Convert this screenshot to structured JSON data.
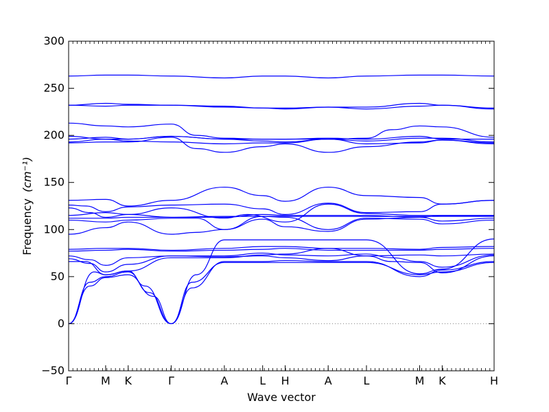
{
  "chart_data": {
    "type": "line",
    "xlabel": "Wave vector",
    "ylabel": "Frequency",
    "ylabel_unit": "(cm⁻¹)",
    "ylim": [
      -50,
      300
    ],
    "yticks": [
      -50,
      0,
      50,
      100,
      150,
      200,
      250,
      300
    ],
    "grid": false,
    "zero_line": true,
    "colors": {
      "band": "#0000ff",
      "zero_line": "#7f7f7f",
      "axes": "#000000"
    },
    "high_symmetry_points": [
      {
        "label": "Γ",
        "x": 0.0
      },
      {
        "label": "M",
        "x": 0.087
      },
      {
        "label": "K",
        "x": 0.14
      },
      {
        "label": "Γ",
        "x": 0.241
      },
      {
        "label": "A",
        "x": 0.366
      },
      {
        "label": "L",
        "x": 0.456
      },
      {
        "label": "H",
        "x": 0.509
      },
      {
        "label": "A",
        "x": 0.61
      },
      {
        "label": "L",
        "x": 0.7
      },
      {
        "label": "M",
        "x": 0.825
      },
      {
        "label": "K",
        "x": 0.878
      },
      {
        "label": "H",
        "x": 1.0
      }
    ],
    "bands": [
      {
        "x": [
          0,
          0.06,
          0.087,
          0.14,
          0.18,
          0.241
        ],
        "y": [
          0,
          55,
          52,
          56,
          40,
          0
        ]
      },
      {
        "x": [
          0,
          0.05,
          0.087,
          0.14,
          0.19,
          0.241
        ],
        "y": [
          0,
          44,
          50,
          55,
          33,
          0
        ]
      },
      {
        "x": [
          0,
          0.05,
          0.087,
          0.14,
          0.2,
          0.241
        ],
        "y": [
          0,
          40,
          49,
          52,
          29,
          0
        ]
      },
      {
        "x": [
          0.241,
          0.29,
          0.366,
          0.456,
          0.509,
          0.61,
          0.7,
          0.825,
          0.878,
          1.0
        ],
        "y": [
          0,
          44,
          65,
          65,
          65,
          65,
          65,
          52,
          55,
          65
        ]
      },
      {
        "x": [
          0.241,
          0.29,
          0.366,
          0.456,
          0.509,
          0.61,
          0.7,
          0.825,
          0.878,
          1.0
        ],
        "y": [
          0,
          38,
          66,
          66,
          67,
          66,
          66,
          50,
          57,
          66
        ]
      },
      {
        "x": [
          0.241,
          0.3,
          0.366,
          0.456,
          0.509,
          0.61,
          0.7,
          0.825,
          0.878,
          1.0
        ],
        "y": [
          0,
          52,
          89,
          89,
          89,
          89,
          89,
          53,
          58,
          90
        ]
      },
      {
        "x": [
          0,
          0.04,
          0.087,
          0.14,
          0.24,
          0.366,
          0.456,
          0.509,
          0.61,
          0.7,
          0.76,
          0.825,
          0.878,
          1.0
        ],
        "y": [
          66,
          66,
          52,
          56,
          70,
          70,
          73,
          74,
          80,
          72,
          66,
          65,
          54,
          72
        ]
      },
      {
        "x": [
          0,
          0.05,
          0.087,
          0.14,
          0.24,
          0.366,
          0.456,
          0.509,
          0.61,
          0.7,
          0.76,
          0.825,
          0.878,
          1.0
        ],
        "y": [
          69,
          64,
          55,
          63,
          72,
          72,
          75,
          73,
          72,
          74,
          70,
          66,
          60,
          73
        ]
      },
      {
        "x": [
          0,
          0.05,
          0.087,
          0.14,
          0.24,
          0.366,
          0.456,
          0.509,
          0.61,
          0.7,
          0.825,
          0.878,
          1.0
        ],
        "y": [
          72,
          68,
          62,
          70,
          72,
          71,
          72,
          70,
          67,
          72,
          73,
          72,
          74
        ]
      },
      {
        "x": [
          0,
          0.087,
          0.14,
          0.241,
          0.366,
          0.456,
          0.509,
          0.61,
          0.7,
          0.825,
          0.878,
          1.0
        ],
        "y": [
          77,
          78,
          79,
          77,
          78,
          79,
          80,
          78,
          78,
          78,
          79,
          80
        ]
      },
      {
        "x": [
          0,
          0.087,
          0.14,
          0.241,
          0.366,
          0.456,
          0.509,
          0.61,
          0.7,
          0.825,
          0.878,
          1.0
        ],
        "y": [
          79,
          80,
          80,
          78,
          80,
          82,
          82,
          80,
          80,
          79,
          81,
          82
        ]
      },
      {
        "x": [
          0,
          0.087,
          0.14,
          0.241,
          0.3,
          0.366,
          0.456,
          0.509,
          0.61,
          0.7,
          0.825,
          0.878,
          1.0
        ],
        "y": [
          95,
          102,
          108,
          95,
          97,
          100,
          114,
          113,
          100,
          112,
          111,
          106,
          110
        ]
      },
      {
        "x": [
          0,
          0.087,
          0.14,
          0.241,
          0.3,
          0.366,
          0.456,
          0.509,
          0.61,
          0.7,
          0.825,
          0.878,
          1.0
        ],
        "y": [
          110,
          108,
          110,
          112,
          112,
          100,
          111,
          103,
          98,
          111,
          113,
          109,
          112
        ]
      },
      {
        "x": [
          0,
          0.087,
          0.14,
          0.241,
          0.366,
          0.456,
          0.509,
          0.61,
          0.7,
          0.825,
          0.878,
          1.0
        ],
        "y": [
          112,
          112,
          113,
          113,
          114,
          114,
          114,
          114,
          114,
          114,
          114,
          114
        ]
      },
      {
        "x": [
          0,
          0.087,
          0.14,
          0.241,
          0.366,
          0.456,
          0.509,
          0.61,
          0.7,
          0.825,
          0.878,
          1.0
        ],
        "y": [
          115,
          118,
          116,
          113,
          113,
          116,
          115,
          115,
          115,
          113,
          115,
          115
        ]
      },
      {
        "x": [
          0,
          0.05,
          0.087,
          0.14,
          0.241,
          0.366,
          0.42,
          0.509,
          0.61,
          0.7,
          0.825,
          0.878,
          1.0
        ],
        "y": [
          123,
          118,
          113,
          116,
          123,
          112,
          116,
          108,
          127,
          117,
          115,
          115,
          115
        ]
      },
      {
        "x": [
          0,
          0.04,
          0.087,
          0.14,
          0.241,
          0.366,
          0.456,
          0.509,
          0.61,
          0.7,
          0.825,
          0.878,
          1.0
        ],
        "y": [
          126,
          125,
          119,
          124,
          126,
          127,
          122,
          116,
          128,
          118,
          119,
          127,
          131
        ]
      },
      {
        "x": [
          0,
          0.087,
          0.14,
          0.241,
          0.366,
          0.456,
          0.509,
          0.61,
          0.7,
          0.825,
          0.878,
          1.0
        ],
        "y": [
          131,
          132,
          125,
          131,
          145,
          136,
          130,
          145,
          136,
          134,
          127,
          131
        ]
      },
      {
        "x": [
          0,
          0.087,
          0.14,
          0.241,
          0.3,
          0.366,
          0.456,
          0.509,
          0.61,
          0.7,
          0.825,
          0.878,
          1.0
        ],
        "y": [
          192,
          193,
          193,
          198,
          186,
          182,
          188,
          191,
          182,
          188,
          193,
          195,
          192
        ]
      },
      {
        "x": [
          0,
          0.087,
          0.14,
          0.241,
          0.366,
          0.456,
          0.509,
          0.61,
          0.7,
          0.825,
          0.878,
          1.0
        ],
        "y": [
          193,
          196,
          194,
          193,
          191,
          192,
          192,
          196,
          191,
          192,
          195,
          191
        ]
      },
      {
        "x": [
          0,
          0.087,
          0.14,
          0.241,
          0.366,
          0.456,
          0.509,
          0.61,
          0.7,
          0.825,
          0.878,
          1.0
        ],
        "y": [
          196,
          198,
          196,
          199,
          196,
          194,
          193,
          196,
          194,
          197,
          197,
          193
        ]
      },
      {
        "x": [
          0,
          0.087,
          0.14,
          0.241,
          0.366,
          0.456,
          0.509,
          0.61,
          0.7,
          0.825,
          0.878,
          1.0
        ],
        "y": [
          199,
          196,
          196,
          199,
          196,
          196,
          196,
          197,
          196,
          199,
          196,
          196
        ]
      },
      {
        "x": [
          0,
          0.087,
          0.14,
          0.241,
          0.3,
          0.366,
          0.456,
          0.509,
          0.61,
          0.7,
          0.76,
          0.825,
          0.878,
          1.0
        ],
        "y": [
          213,
          210,
          209,
          212,
          200,
          197,
          196,
          196,
          196,
          197,
          206,
          210,
          209,
          198
        ]
      },
      {
        "x": [
          0,
          0.087,
          0.14,
          0.241,
          0.366,
          0.456,
          0.509,
          0.61,
          0.7,
          0.825,
          0.878,
          1.0
        ],
        "y": [
          232,
          231,
          232,
          232,
          230,
          229,
          228,
          230,
          228,
          231,
          232,
          228
        ]
      },
      {
        "x": [
          0,
          0.087,
          0.14,
          0.241,
          0.366,
          0.456,
          0.509,
          0.61,
          0.7,
          0.825,
          0.878,
          1.0
        ],
        "y": [
          232,
          234,
          233,
          232,
          231,
          229,
          229,
          230,
          230,
          234,
          232,
          229
        ]
      },
      {
        "x": [
          0,
          0.087,
          0.14,
          0.241,
          0.366,
          0.456,
          0.509,
          0.61,
          0.7,
          0.825,
          0.878,
          1.0
        ],
        "y": [
          263,
          264,
          264,
          263,
          261,
          263,
          263,
          261,
          263,
          264,
          264,
          263
        ]
      }
    ]
  }
}
